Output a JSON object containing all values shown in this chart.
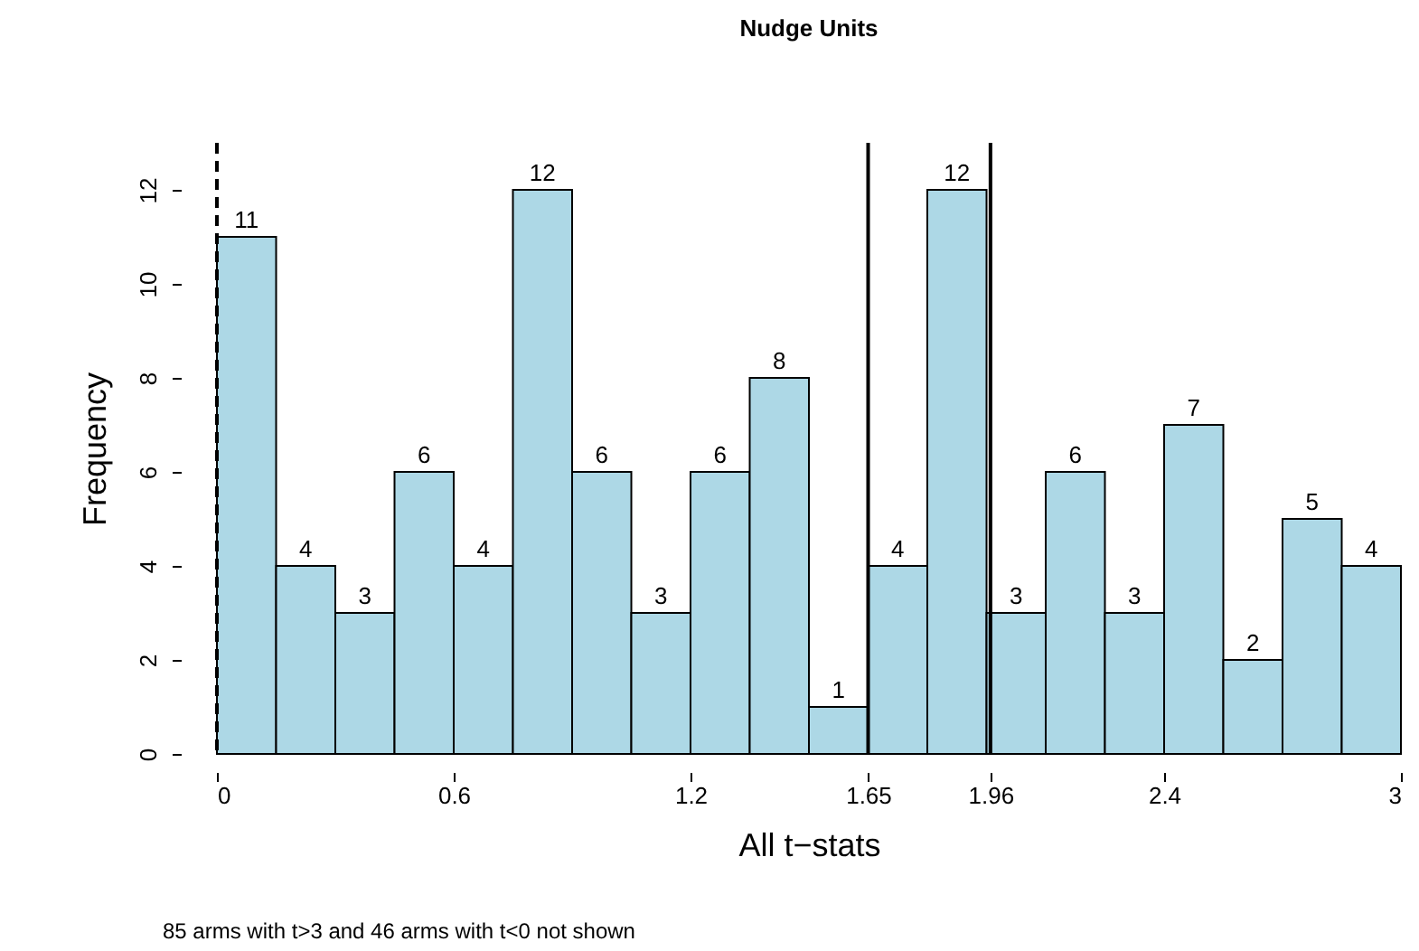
{
  "chart_data": {
    "type": "histogram",
    "title": "Nudge Units",
    "xlabel": "All t−stats",
    "ylabel": "Frequency",
    "bins": [
      0,
      0.15,
      0.3,
      0.45,
      0.6,
      0.75,
      0.9,
      1.05,
      1.2,
      1.35,
      1.5,
      1.65,
      1.8,
      1.95,
      2.1,
      2.25,
      2.4,
      2.55,
      2.7,
      2.85,
      3
    ],
    "values": [
      11,
      4,
      3,
      6,
      4,
      12,
      6,
      3,
      6,
      8,
      1,
      4,
      12,
      3,
      6,
      3,
      7,
      2,
      5,
      4
    ],
    "color": "#add8e6",
    "data_labels": true,
    "xlim": [
      0,
      3
    ],
    "xticks": [
      0,
      0.6,
      1.2,
      1.65,
      1.96,
      2.4,
      3
    ],
    "ylim": [
      0,
      13
    ],
    "yticks": [
      0,
      2,
      4,
      6,
      8,
      10,
      12
    ],
    "grid": false,
    "ref_lines": [
      {
        "axis": "x",
        "value": 0,
        "line_style": "dashed"
      },
      {
        "axis": "x",
        "value": 1.65,
        "line_style": "solid"
      },
      {
        "axis": "x",
        "value": 1.96,
        "line_style": "solid"
      }
    ],
    "annotations": [
      "85 arms with t>3 and 46 arms with t<0 not shown"
    ]
  }
}
